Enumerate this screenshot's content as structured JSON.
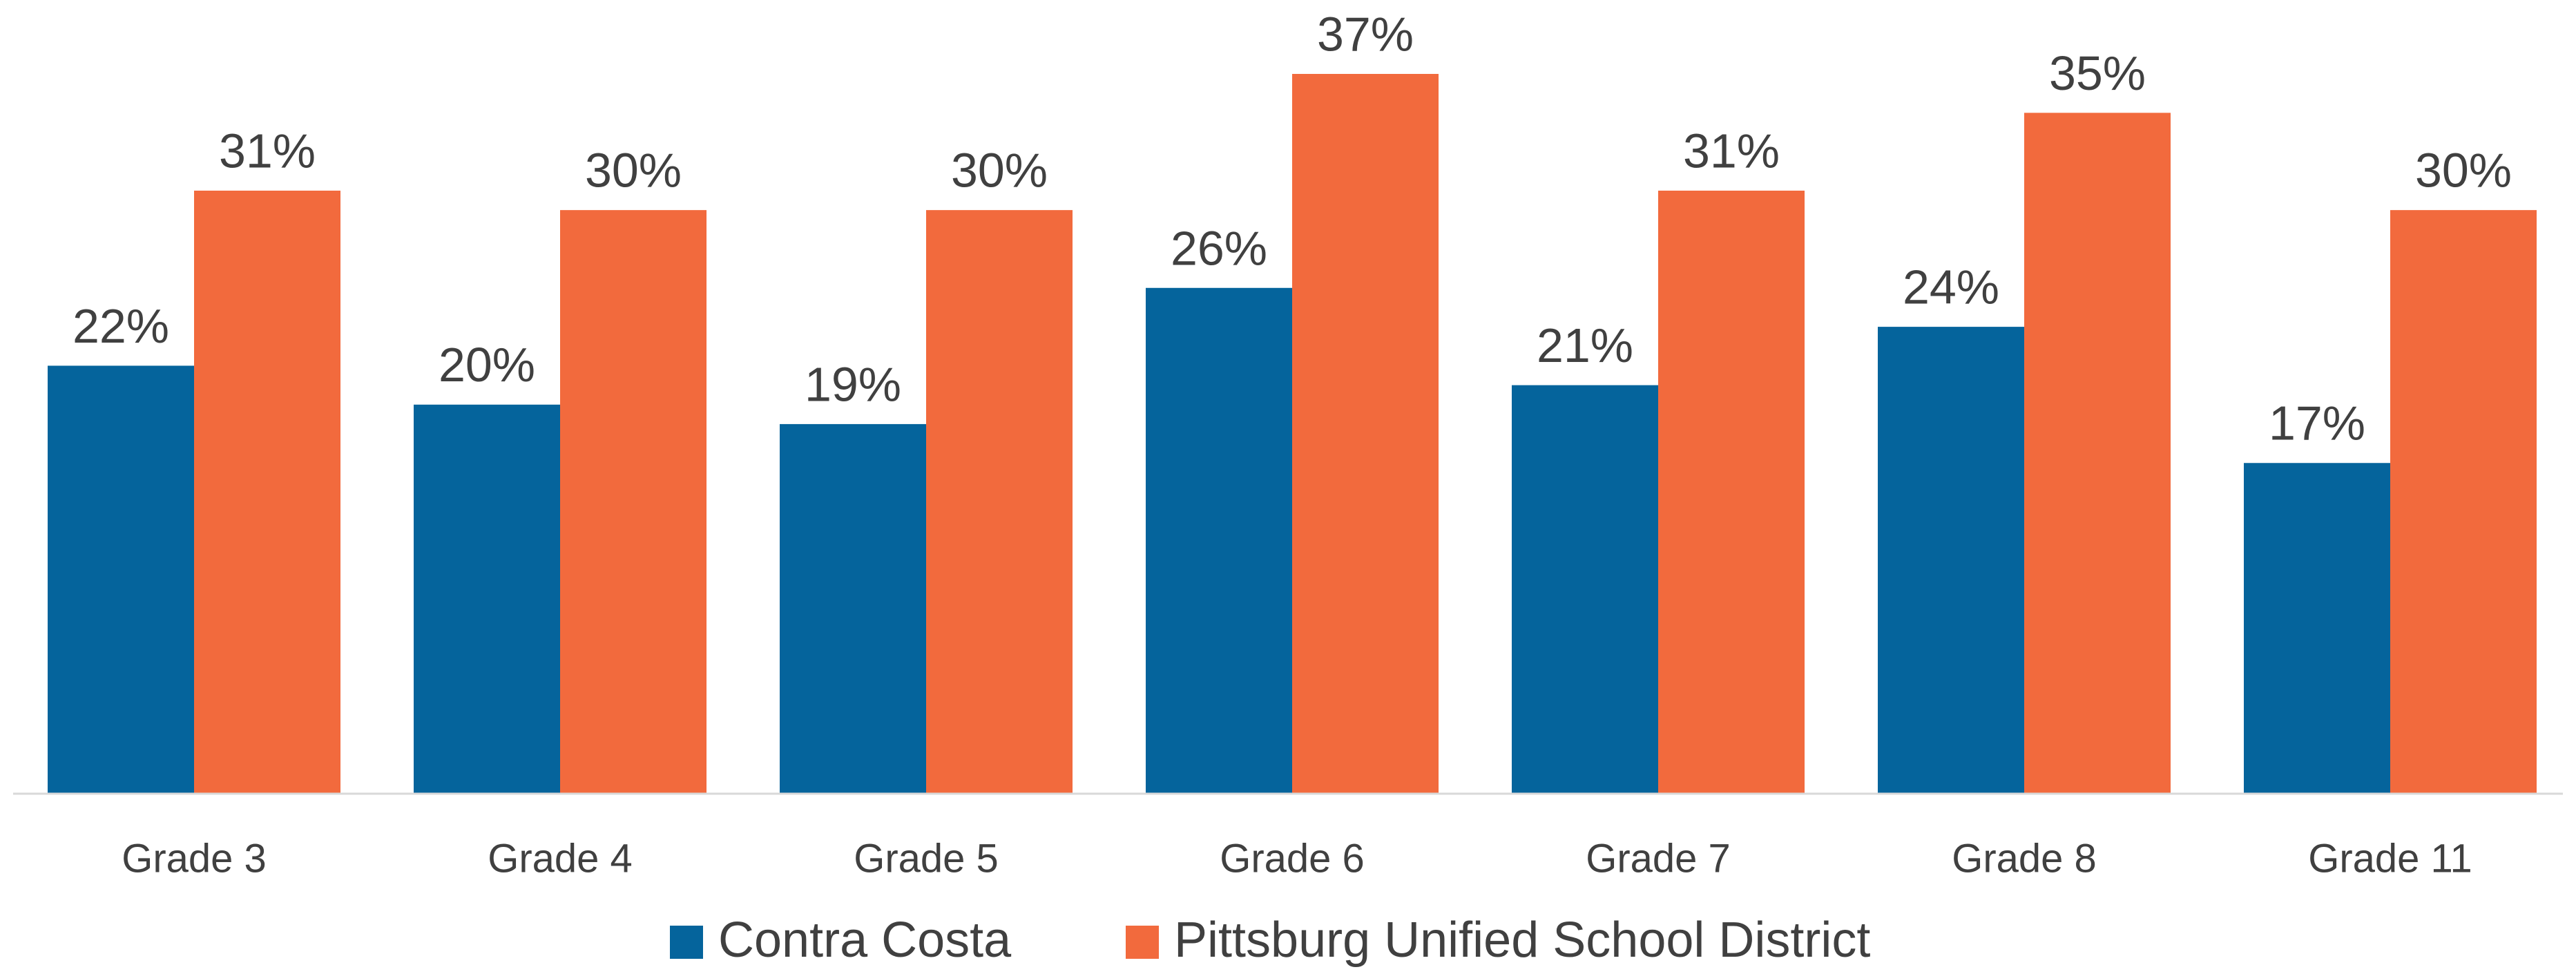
{
  "chart_data": {
    "type": "bar",
    "categories": [
      "Grade 3",
      "Grade 4",
      "Grade 5",
      "Grade 6",
      "Grade 7",
      "Grade 8",
      "Grade 11"
    ],
    "series": [
      {
        "name": "Contra Costa",
        "color": "#05649c",
        "values": [
          22,
          20,
          19,
          26,
          21,
          24,
          17
        ],
        "value_labels": [
          "22%",
          "20%",
          "19%",
          "26%",
          "21%",
          "24%",
          "17%"
        ]
      },
      {
        "name": "Pittsburg Unified School District",
        "color": "#f26a3d",
        "values": [
          31,
          30,
          30,
          37,
          31,
          35,
          30
        ],
        "value_labels": [
          "31%",
          "30%",
          "30%",
          "37%",
          "31%",
          "35%",
          "30%"
        ]
      }
    ],
    "legend": "bottom"
  }
}
